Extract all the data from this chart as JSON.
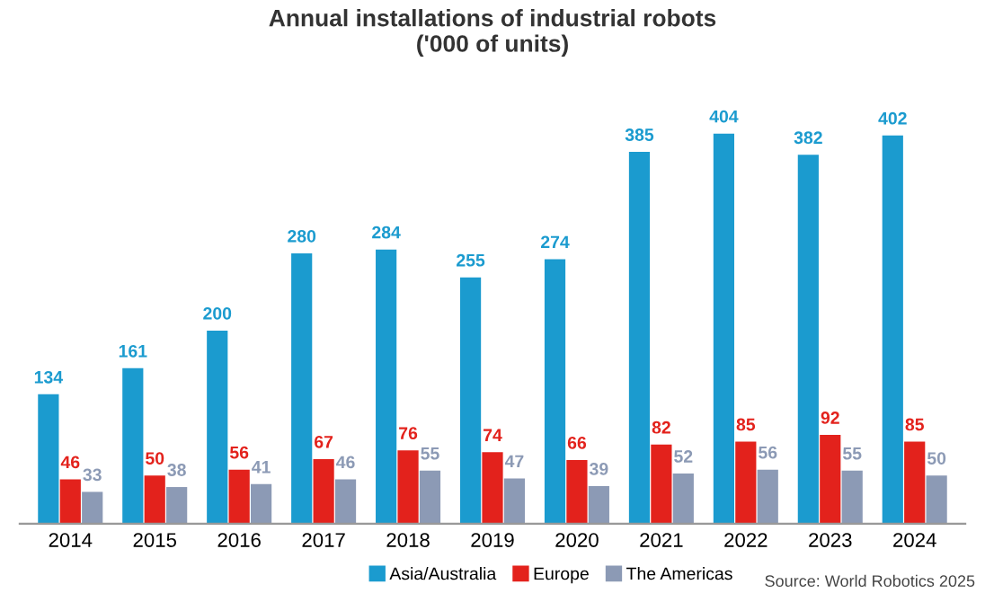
{
  "chart_data": {
    "type": "bar",
    "title": "Annual installations of industrial robots\n('000 of units)",
    "categories": [
      "2014",
      "2015",
      "2016",
      "2017",
      "2018",
      "2019",
      "2020",
      "2021",
      "2022",
      "2023",
      "2024"
    ],
    "series": [
      {
        "name": "Asia/Australia",
        "color": "#1b9bcf",
        "values": [
          134,
          161,
          200,
          280,
          284,
          255,
          274,
          385,
          404,
          382,
          402
        ]
      },
      {
        "name": "Europe",
        "color": "#e3221c",
        "values": [
          46,
          50,
          56,
          67,
          76,
          74,
          66,
          82,
          85,
          92,
          85
        ]
      },
      {
        "name": "The Americas",
        "color": "#8c9ab5",
        "values": [
          33,
          38,
          41,
          46,
          55,
          47,
          39,
          52,
          56,
          55,
          50
        ]
      }
    ],
    "data_labels": true,
    "legend": "bottom right",
    "grid": false,
    "annotations": [
      "Source: World Robotics 2025"
    ]
  }
}
